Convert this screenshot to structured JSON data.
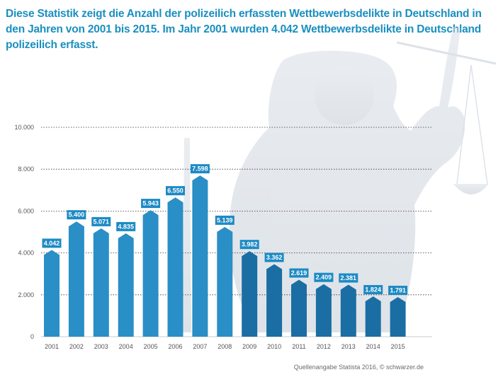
{
  "headline": "Diese Statistik zeigt die Anzahl der polizeilich erfassten Wettbewerbsdelikte in Deutschland in den Jahren von 2001 bis 2015. Im Jahr 2001 wurden 4.042 Wettbewerbsdelikte in Deutschland polizeilich erfasst.",
  "source": "Quellenangabe Statista 2016, © schwarzer.de",
  "colors": {
    "bar_light": "#2a8fc6",
    "bar_dark": "#1a6ea3",
    "label_bg": "#1d8ac4",
    "title": "#1a8fc0"
  },
  "chart_data": {
    "type": "bar",
    "categories": [
      "2001",
      "2002",
      "2003",
      "2004",
      "2005",
      "2006",
      "2007",
      "2008",
      "2009",
      "2010",
      "2011",
      "2012",
      "2013",
      "2014",
      "2015"
    ],
    "values": [
      4042,
      5400,
      5071,
      4835,
      5943,
      6550,
      7598,
      5139,
      3982,
      3362,
      2619,
      2409,
      2381,
      1824,
      1791
    ],
    "value_labels": [
      "4.042",
      "5.400",
      "5.071",
      "4.835",
      "5.943",
      "6.550",
      "7.598",
      "5.139",
      "3.982",
      "3.362",
      "2.619",
      "2.409",
      "2.381",
      "1.824",
      "1.791"
    ],
    "yticks": [
      0,
      2000,
      4000,
      6000,
      8000,
      10000
    ],
    "ytick_labels": [
      "0",
      "2.000",
      "4.000",
      "6.000",
      "8.000",
      "10.000"
    ],
    "ylim": [
      0,
      10000
    ],
    "grid": "horizontal dotted",
    "title": "",
    "xlabel": "",
    "ylabel": ""
  }
}
